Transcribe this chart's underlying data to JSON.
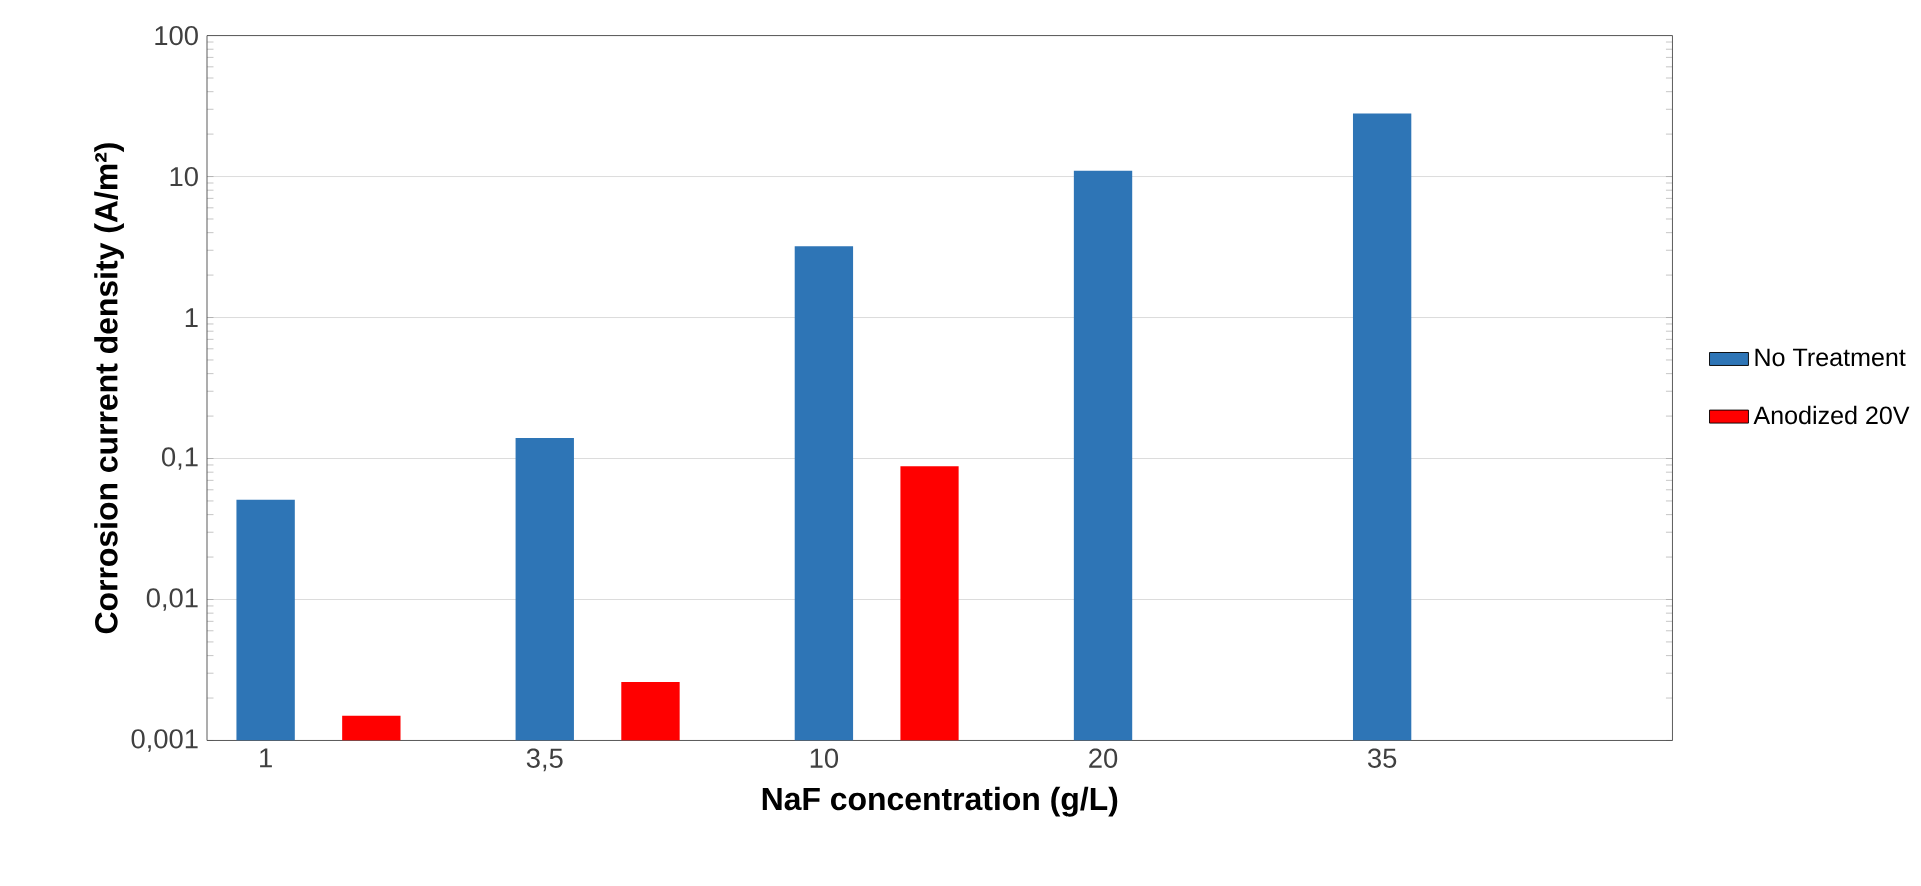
{
  "chart_data": {
    "type": "bar",
    "xlabel": "NaF concentration (g/L)",
    "ylabel": "Corrosion current density (A/m²)",
    "categories": [
      "1",
      "3,5",
      "10",
      "20",
      "35"
    ],
    "series": [
      {
        "name": "No Treatment",
        "color": "#2e75b6",
        "values": [
          0.051,
          0.14,
          3.2,
          11,
          28
        ]
      },
      {
        "name": "Anodized 20V",
        "color": "#ff0000",
        "values": [
          0.0015,
          0.0026,
          0.088,
          null,
          null
        ]
      }
    ],
    "log": "y",
    "ylim": [
      0.001,
      100
    ],
    "yticks": [
      {
        "value": 0.001,
        "label": "0,001"
      },
      {
        "value": 0.01,
        "label": "0,01"
      },
      {
        "value": 0.1,
        "label": "0,1"
      },
      {
        "value": 1,
        "label": "1"
      },
      {
        "value": 10,
        "label": "10"
      },
      {
        "value": 100,
        "label": "100"
      }
    ],
    "grid": "y",
    "legend": "right"
  }
}
